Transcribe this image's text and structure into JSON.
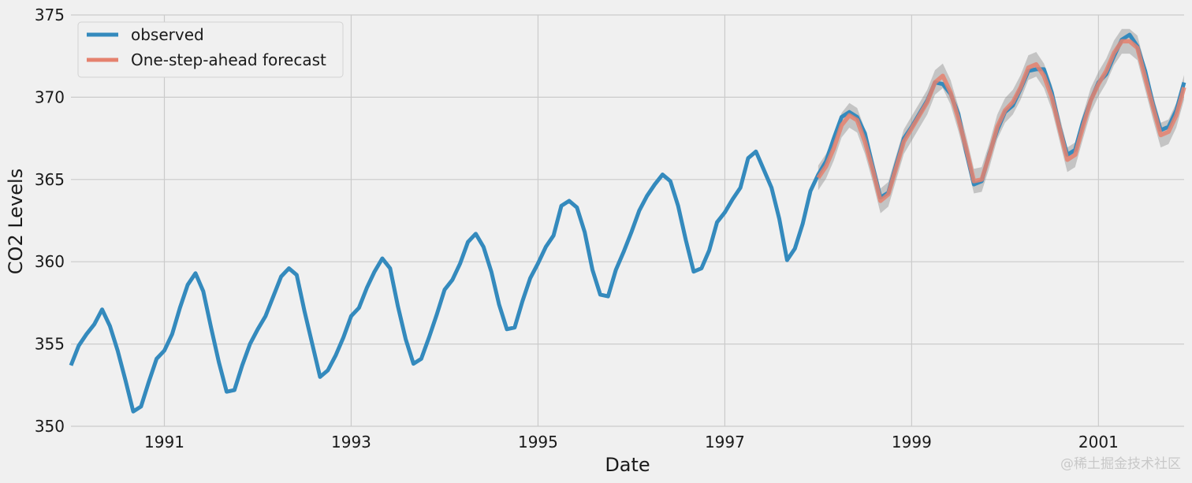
{
  "chart_data": {
    "type": "line",
    "xlabel": "Date",
    "ylabel": "CO2 Levels",
    "xlim": [
      1990.0,
      2001.917
    ],
    "ylim": [
      350,
      375
    ],
    "x_ticks": [
      1991,
      1993,
      1995,
      1997,
      1999,
      2001
    ],
    "x_tick_labels": [
      "1991",
      "1993",
      "1995",
      "1997",
      "1999",
      "2001"
    ],
    "y_ticks": [
      350,
      355,
      360,
      365,
      370,
      375
    ],
    "y_tick_labels": [
      "350",
      "355",
      "360",
      "365",
      "370",
      "375"
    ],
    "grid": true,
    "legend_position": "top-left",
    "series": [
      {
        "name": "observed",
        "color": "#348abd",
        "start_year": 1990,
        "frequency": "monthly",
        "values": [
          353.7,
          354.9,
          355.6,
          356.2,
          357.1,
          356.1,
          354.6,
          352.8,
          350.9,
          351.2,
          352.7,
          354.1,
          354.6,
          355.6,
          357.2,
          358.6,
          359.3,
          358.2,
          356.0,
          353.9,
          352.1,
          352.2,
          353.7,
          355.0,
          355.9,
          356.7,
          357.9,
          359.1,
          359.6,
          359.2,
          357.0,
          355.0,
          353.0,
          353.4,
          354.3,
          355.4,
          356.7,
          357.2,
          358.4,
          359.4,
          360.2,
          359.6,
          357.3,
          355.3,
          353.8,
          354.1,
          355.4,
          356.8,
          358.3,
          358.9,
          359.9,
          361.2,
          361.7,
          360.9,
          359.4,
          357.4,
          355.9,
          356.0,
          357.6,
          359.0,
          359.9,
          360.9,
          361.6,
          363.4,
          363.7,
          363.3,
          361.8,
          359.5,
          358.0,
          357.9,
          359.5,
          360.6,
          361.8,
          363.1,
          364.0,
          364.7,
          365.3,
          364.9,
          363.4,
          361.3,
          359.4,
          359.6,
          360.7,
          362.4,
          363.0,
          363.8,
          364.5,
          366.3,
          366.7,
          365.6,
          364.5,
          362.6,
          360.1,
          360.8,
          362.3,
          364.3,
          365.3,
          366.1,
          367.5,
          368.8,
          369.1,
          368.8,
          367.8,
          365.8,
          363.9,
          364.2,
          365.9,
          367.5,
          368.2,
          369.0,
          369.8,
          370.9,
          370.8,
          370.2,
          369.0,
          366.7,
          364.7,
          364.9,
          366.6,
          368.0,
          369.1,
          369.5,
          370.5,
          371.6,
          371.7,
          371.7,
          370.3,
          368.2,
          366.5,
          366.8,
          368.5,
          369.8,
          370.9,
          371.4,
          372.5,
          373.5,
          373.8,
          373.1,
          371.6,
          369.6,
          368.0,
          368.2,
          369.2,
          370.9
        ]
      },
      {
        "name": "One-step-ahead forecast",
        "color": "#e5816e",
        "start_year": 1998,
        "frequency": "monthly",
        "values": [
          365.1,
          365.8,
          366.9,
          368.3,
          368.9,
          368.6,
          367.3,
          365.6,
          363.7,
          364.1,
          365.7,
          367.3,
          368.1,
          368.9,
          369.7,
          370.9,
          371.3,
          370.3,
          368.7,
          366.9,
          364.9,
          365.0,
          366.5,
          368.2,
          369.2,
          369.7,
          370.6,
          371.8,
          372.0,
          371.3,
          370.0,
          368.1,
          366.2,
          366.5,
          368.2,
          369.8,
          370.8,
          371.6,
          372.7,
          373.4,
          373.4,
          373.0,
          371.2,
          369.4,
          367.7,
          367.9,
          368.9,
          370.6
        ],
        "ci_halfwidth": 0.75
      }
    ],
    "confidence_band_color": "#8f8f8f"
  },
  "watermark": "@稀土掘金技术社区"
}
